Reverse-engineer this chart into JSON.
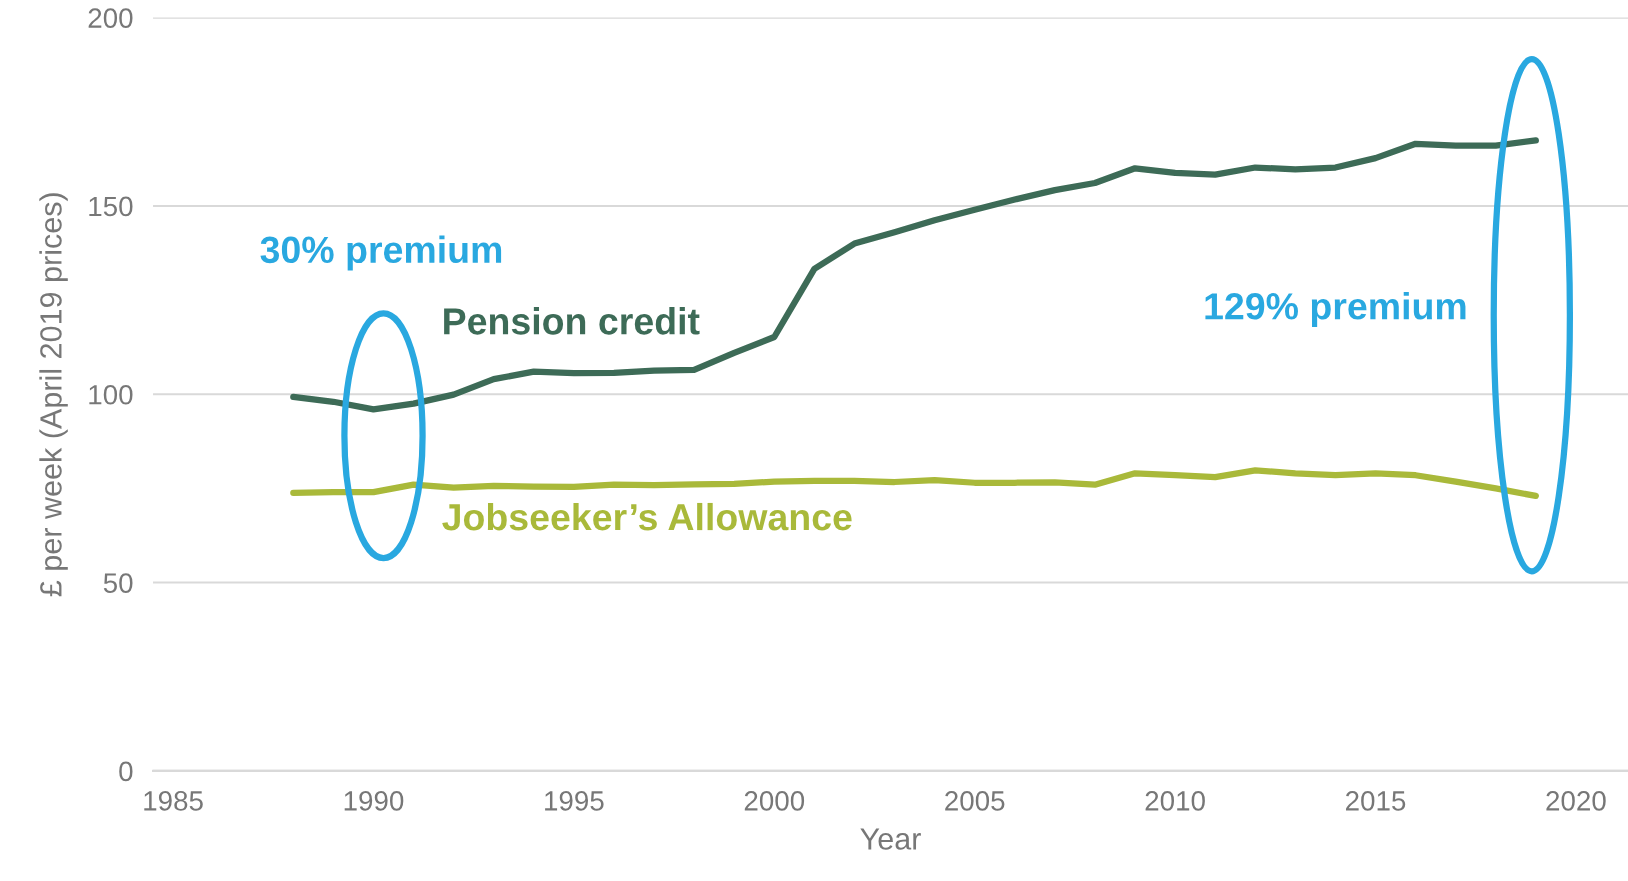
{
  "chart_data": {
    "type": "line",
    "xlabel": "Year",
    "ylabel": "£ per week (April 2019 prices)",
    "x": [
      1988,
      1989,
      1990,
      1991,
      1992,
      1993,
      1994,
      1995,
      1996,
      1997,
      1998,
      1999,
      2000,
      2001,
      2002,
      2003,
      2004,
      2005,
      2006,
      2007,
      2008,
      2009,
      2010,
      2011,
      2012,
      2013,
      2014,
      2015,
      2016,
      2017,
      2018,
      2019
    ],
    "series": [
      {
        "name": "Pension credit",
        "color": "#3d6b57",
        "values": [
          99.3,
          98,
          96,
          97.5,
          99.9,
          104,
          106,
          105.6,
          105.7,
          106.3,
          106.5,
          111,
          115.2,
          133.3,
          140,
          143,
          146.2,
          149,
          151.7,
          154.2,
          156.1,
          160,
          158.8,
          158.3,
          160.2,
          159.7,
          160.2,
          162.7,
          166.5,
          166,
          166,
          167.4
        ]
      },
      {
        "name": "Jobseeker’s Allowance",
        "color": "#a9b93a",
        "values": [
          73.8,
          74,
          74,
          76,
          75.2,
          75.7,
          75.5,
          75.4,
          76,
          75.9,
          76.1,
          76.2,
          76.8,
          77,
          77,
          76.7,
          77.2,
          76.5,
          76.5,
          76.6,
          76,
          79,
          78.5,
          78,
          79.8,
          79,
          78.5,
          79,
          78.5,
          76.8,
          75,
          73
        ]
      }
    ],
    "annotations": [
      "30% premium",
      "129% premium"
    ],
    "xlim": [
      1984.5,
      2021.3
    ],
    "xticks": [
      1985,
      1990,
      1995,
      2000,
      2005,
      2010,
      2015,
      2020
    ],
    "ylim": [
      0,
      200
    ],
    "yticks": [
      0,
      50,
      100,
      150,
      200
    ],
    "grid": "y",
    "legend": false,
    "marker": "none",
    "line_style": "solid"
  }
}
